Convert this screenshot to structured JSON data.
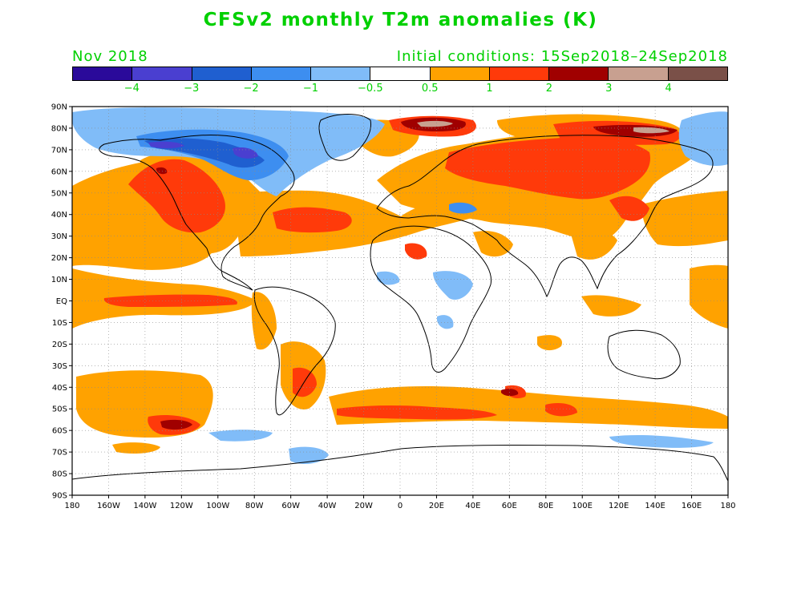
{
  "title": "CFSv2 monthly T2m anomalies (K)",
  "valid_month": "Nov 2018",
  "initial_conditions": "Initial conditions: 15Sep2018–24Sep2018",
  "colorbar": {
    "colors": [
      "#2a0a9a",
      "#4a3fd0",
      "#1f5fd0",
      "#3d8ef0",
      "#80bcf8",
      "#ffffff",
      "#ffa200",
      "#ff3a0a",
      "#a00000",
      "#c8a090",
      "#7a5048"
    ],
    "labels": [
      "−4",
      "−3",
      "−2",
      "−1",
      "−0.5",
      "0.5",
      "1",
      "2",
      "3",
      "4"
    ]
  },
  "map_axes": {
    "lat_labels": [
      "90N",
      "80N",
      "70N",
      "60N",
      "50N",
      "40N",
      "30N",
      "20N",
      "10N",
      "EQ",
      "10S",
      "20S",
      "30S",
      "40S",
      "50S",
      "60S",
      "70S",
      "80S",
      "90S"
    ],
    "lon_labels": [
      "180",
      "160W",
      "140W",
      "120W",
      "100W",
      "80W",
      "60W",
      "40W",
      "20W",
      "0",
      "20E",
      "40E",
      "60E",
      "80E",
      "100E",
      "120E",
      "140E",
      "160E",
      "180"
    ]
  },
  "colors": {
    "label_green": "#00d000",
    "ocean": "#ffffff",
    "coast": "#000000"
  }
}
